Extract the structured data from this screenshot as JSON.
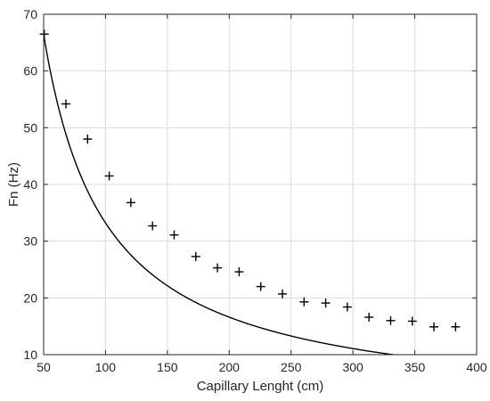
{
  "chart_data": {
    "type": "scatter",
    "title": "",
    "xlabel": "Capillary Lenght (cm)",
    "ylabel": "Fn (Hz)",
    "xlim": [
      50,
      400
    ],
    "ylim": [
      10,
      70
    ],
    "xticks": [
      "50",
      "100",
      "150",
      "200",
      "250",
      "300",
      "350",
      "400"
    ],
    "yticks": [
      "10",
      "20",
      "30",
      "40",
      "50",
      "60",
      "70"
    ],
    "grid": true,
    "legend": "none",
    "colors": {
      "line": "#000000",
      "markers": "#000000",
      "grid": "#dcdcdc",
      "axes": "#262626"
    },
    "series": [
      {
        "kind": "line",
        "curve": "y = 3324 / x",
        "x": [
          49,
          60,
          70,
          80,
          90,
          100,
          120,
          140,
          160,
          180,
          200,
          225,
          250,
          275,
          300,
          325,
          350,
          375,
          400
        ],
        "y": [
          67.8,
          55.4,
          47.5,
          41.6,
          36.9,
          33.2,
          27.7,
          23.7,
          20.8,
          18.5,
          16.6,
          14.8,
          13.3,
          12.1,
          11.1,
          10.2,
          9.5,
          8.9,
          8.3
        ]
      },
      {
        "kind": "markers",
        "marker": "plus",
        "x": [
          50.5,
          68,
          85.5,
          103,
          120.5,
          138,
          155.5,
          173,
          190.5,
          208,
          225.5,
          243,
          260.5,
          278,
          295.5,
          313,
          330.5,
          348,
          365.5,
          383
        ],
        "y": [
          66.5,
          54.2,
          48.0,
          41.5,
          36.8,
          32.7,
          31.1,
          27.3,
          25.3,
          24.6,
          22.0,
          20.7,
          19.3,
          19.1,
          18.4,
          16.6,
          16.0,
          15.9,
          14.9,
          14.9
        ]
      }
    ]
  }
}
